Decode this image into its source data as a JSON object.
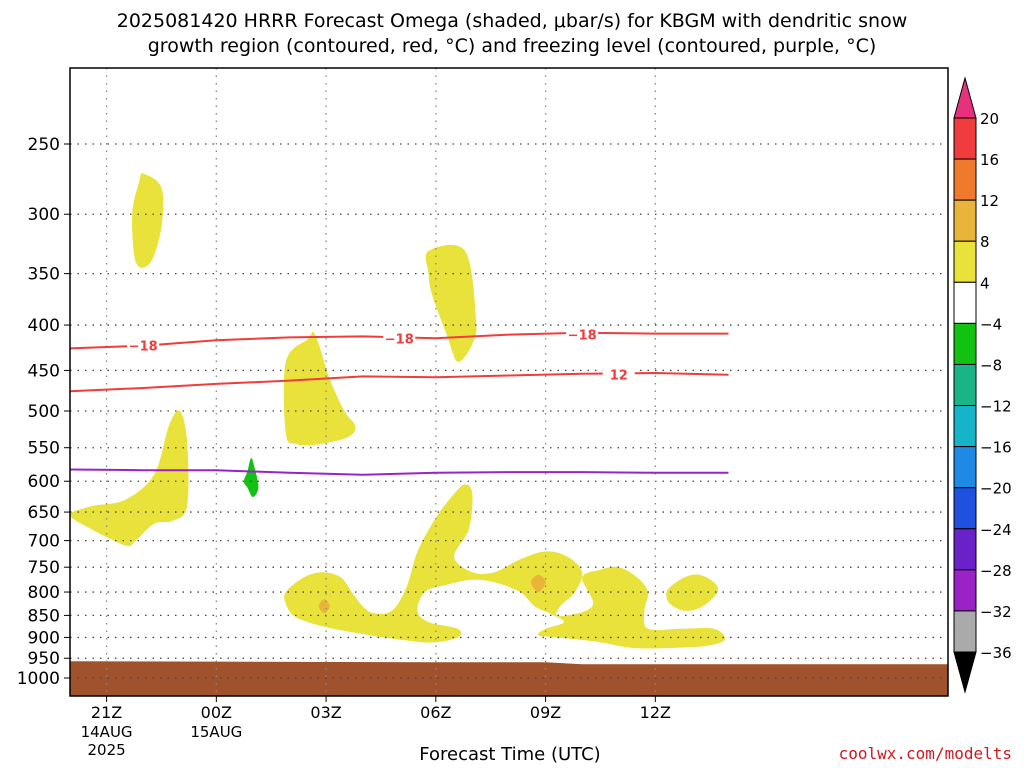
{
  "title_line1": "2025081420 HRRR Forecast Omega (shaded, μbar/s) for KBGM with dendritic snow",
  "title_line2": "growth region (contoured, red, °C) and freezing level (contoured, purple, °C)",
  "credit": "coolwx.com/modelts",
  "chart_data": {
    "type": "heatmap",
    "xlabel": "Forecast Time (UTC)",
    "ylabel": "",
    "x_range_hours_from_start": [
      0,
      24
    ],
    "x_ticks": [
      {
        "hour": 1,
        "label": "21Z",
        "sub1": "14AUG",
        "sub2": "2025"
      },
      {
        "hour": 4,
        "label": "00Z",
        "sub1": "15AUG",
        "sub2": ""
      },
      {
        "hour": 7,
        "label": "03Z",
        "sub1": "",
        "sub2": ""
      },
      {
        "hour": 10,
        "label": "06Z",
        "sub1": "",
        "sub2": ""
      },
      {
        "hour": 13,
        "label": "09Z",
        "sub1": "",
        "sub2": ""
      },
      {
        "hour": 16,
        "label": "12Z",
        "sub1": "",
        "sub2": ""
      }
    ],
    "y_axis": "pressure (mb), log scale, inverted",
    "ylim": [
      1050,
      200
    ],
    "y_ticks": [
      250,
      300,
      350,
      400,
      450,
      500,
      550,
      600,
      650,
      700,
      750,
      800,
      850,
      900,
      950,
      1000
    ],
    "grid": true,
    "colorbar": {
      "levels": [
        "20",
        "16",
        "12",
        "8",
        "4",
        "−4",
        "−8",
        "−12",
        "−16",
        "−20",
        "−24",
        "−28",
        "−32",
        "−36"
      ],
      "colors": [
        "#e8317e",
        "#f03c3c",
        "#ef7a2b",
        "#e9b43a",
        "#e8e23a",
        "#ffffff",
        "#12c212",
        "#1ab489",
        "#16b4c8",
        "#1e8ae6",
        "#2050e0",
        "#6a22c8",
        "#9a22c6",
        "#aaaaaa",
        "#000000"
      ]
    },
    "omega_regions": [
      {
        "value_range": "4 to 8",
        "color": "#e8e23a",
        "points": [
          [
            2.0,
            270
          ],
          [
            2.5,
            280
          ],
          [
            2.5,
            310
          ],
          [
            2.2,
            340
          ],
          [
            1.8,
            340
          ],
          [
            1.7,
            300
          ],
          [
            1.9,
            275
          ]
        ]
      },
      {
        "value_range": "4 to 8",
        "color": "#e8e23a",
        "points": [
          [
            0.0,
            655
          ],
          [
            0.6,
            640
          ],
          [
            1.5,
            630
          ],
          [
            2.3,
            590
          ],
          [
            2.7,
            520
          ],
          [
            3.0,
            500
          ],
          [
            3.2,
            540
          ],
          [
            3.2,
            640
          ],
          [
            2.8,
            665
          ],
          [
            2.3,
            670
          ],
          [
            1.8,
            700
          ],
          [
            1.6,
            710
          ],
          [
            1.2,
            700
          ],
          [
            0.6,
            680
          ]
        ]
      },
      {
        "value_range": "4 to 8",
        "color": "#e8e23a",
        "points": [
          [
            5.9,
            440
          ],
          [
            6.5,
            415
          ],
          [
            6.7,
            410
          ],
          [
            7.1,
            460
          ],
          [
            7.5,
            500
          ],
          [
            7.8,
            520
          ],
          [
            7.6,
            535
          ],
          [
            6.8,
            545
          ],
          [
            6.2,
            545
          ],
          [
            5.9,
            530
          ]
        ]
      },
      {
        "value_range": "4 to 8",
        "color": "#e8e23a",
        "points": [
          [
            9.8,
            330
          ],
          [
            10.8,
            330
          ],
          [
            11.1,
            395
          ],
          [
            11.0,
            420
          ],
          [
            10.6,
            440
          ],
          [
            10.3,
            410
          ],
          [
            9.9,
            370
          ],
          [
            9.8,
            350
          ]
        ]
      },
      {
        "value_range": "4 to 8",
        "color": "#e8e23a",
        "points": [
          [
            5.9,
            800
          ],
          [
            6.4,
            770
          ],
          [
            6.9,
            760
          ],
          [
            7.4,
            770
          ],
          [
            7.7,
            800
          ],
          [
            8.0,
            830
          ],
          [
            8.3,
            845
          ],
          [
            8.8,
            840
          ],
          [
            9.2,
            790
          ],
          [
            9.5,
            720
          ],
          [
            10.0,
            660
          ],
          [
            10.5,
            620
          ],
          [
            10.8,
            605
          ],
          [
            11.0,
            620
          ],
          [
            10.9,
            680
          ],
          [
            10.5,
            730
          ],
          [
            11.0,
            760
          ],
          [
            11.6,
            760
          ],
          [
            12.3,
            735
          ],
          [
            13.0,
            720
          ],
          [
            13.6,
            730
          ],
          [
            14.0,
            760
          ],
          [
            13.8,
            800
          ],
          [
            13.4,
            830
          ],
          [
            13.3,
            850
          ],
          [
            13.6,
            850
          ],
          [
            14.1,
            840
          ],
          [
            14.3,
            820
          ],
          [
            14.0,
            770
          ],
          [
            14.5,
            755
          ],
          [
            15.0,
            750
          ],
          [
            15.5,
            770
          ],
          [
            15.8,
            800
          ],
          [
            15.7,
            840
          ],
          [
            15.8,
            880
          ],
          [
            16.7,
            880
          ],
          [
            17.6,
            880
          ],
          [
            17.9,
            905
          ],
          [
            17.4,
            920
          ],
          [
            16.4,
            925
          ],
          [
            15.4,
            925
          ],
          [
            14.4,
            910
          ],
          [
            13.3,
            900
          ],
          [
            12.8,
            895
          ],
          [
            13.0,
            880
          ],
          [
            13.5,
            865
          ],
          [
            13.1,
            845
          ],
          [
            12.7,
            830
          ],
          [
            12.3,
            800
          ],
          [
            11.6,
            780
          ],
          [
            11.0,
            775
          ],
          [
            10.3,
            785
          ],
          [
            9.7,
            800
          ],
          [
            9.5,
            840
          ],
          [
            9.8,
            865
          ],
          [
            10.6,
            880
          ],
          [
            10.6,
            900
          ],
          [
            9.9,
            912
          ],
          [
            9.0,
            905
          ],
          [
            8.2,
            895
          ],
          [
            7.2,
            880
          ],
          [
            6.5,
            865
          ],
          [
            6.1,
            850
          ],
          [
            5.9,
            825
          ]
        ]
      },
      {
        "value_range": "4 to 8",
        "color": "#e8e23a",
        "points": [
          [
            16.4,
            790
          ],
          [
            16.8,
            770
          ],
          [
            17.2,
            765
          ],
          [
            17.6,
            780
          ],
          [
            17.7,
            800
          ],
          [
            17.3,
            830
          ],
          [
            16.8,
            840
          ],
          [
            16.4,
            825
          ],
          [
            16.3,
            805
          ]
        ]
      },
      {
        "value_range": "8 to 12",
        "color": "#e9b43a",
        "points": [
          [
            6.95,
            815
          ],
          [
            7.1,
            830
          ],
          [
            6.95,
            845
          ],
          [
            6.8,
            830
          ]
        ]
      },
      {
        "value_range": "8 to 12",
        "color": "#e9b43a",
        "points": [
          [
            12.8,
            765
          ],
          [
            13.0,
            780
          ],
          [
            12.8,
            800
          ],
          [
            12.6,
            780
          ]
        ]
      },
      {
        "value_range": "-4 to -8",
        "color": "#12c212",
        "points": [
          [
            4.95,
            565
          ],
          [
            5.05,
            580
          ],
          [
            5.15,
            610
          ],
          [
            5.0,
            625
          ],
          [
            4.85,
            610
          ],
          [
            4.75,
            600
          ],
          [
            4.85,
            585
          ]
        ]
      }
    ],
    "ground": {
      "color": "#a0522d",
      "top_mb": 960
    },
    "contours": [
      {
        "label": "-18",
        "color": "#f03c3c",
        "points": [
          [
            0.0,
            425
          ],
          [
            2.0,
            422
          ],
          [
            4.0,
            416
          ],
          [
            6.0,
            413
          ],
          [
            8.0,
            412
          ],
          [
            10.0,
            414
          ],
          [
            12.0,
            410
          ],
          [
            14.0,
            408
          ],
          [
            16.0,
            409
          ],
          [
            18.0,
            409
          ]
        ],
        "label_positions": [
          [
            2.0,
            422
          ],
          [
            9.0,
            414
          ],
          [
            14.0,
            410
          ]
        ]
      },
      {
        "label": "12",
        "color": "#f03c3c",
        "points": [
          [
            0.0,
            475
          ],
          [
            2.0,
            471
          ],
          [
            4.0,
            466
          ],
          [
            6.0,
            462
          ],
          [
            8.0,
            457
          ],
          [
            10.0,
            458
          ],
          [
            12.0,
            456
          ],
          [
            14.0,
            454
          ],
          [
            16.0,
            453
          ],
          [
            18.0,
            455
          ]
        ],
        "label_positions": [
          [
            15.0,
            455
          ]
        ]
      },
      {
        "label": "",
        "color": "#9a22c6",
        "points": [
          [
            0.0,
            582
          ],
          [
            2.0,
            583
          ],
          [
            4.0,
            583
          ],
          [
            6.0,
            587
          ],
          [
            8.0,
            590
          ],
          [
            10.0,
            587
          ],
          [
            12.0,
            586
          ],
          [
            14.0,
            586
          ],
          [
            16.0,
            587
          ],
          [
            18.0,
            587
          ]
        ],
        "label_positions": []
      }
    ]
  }
}
